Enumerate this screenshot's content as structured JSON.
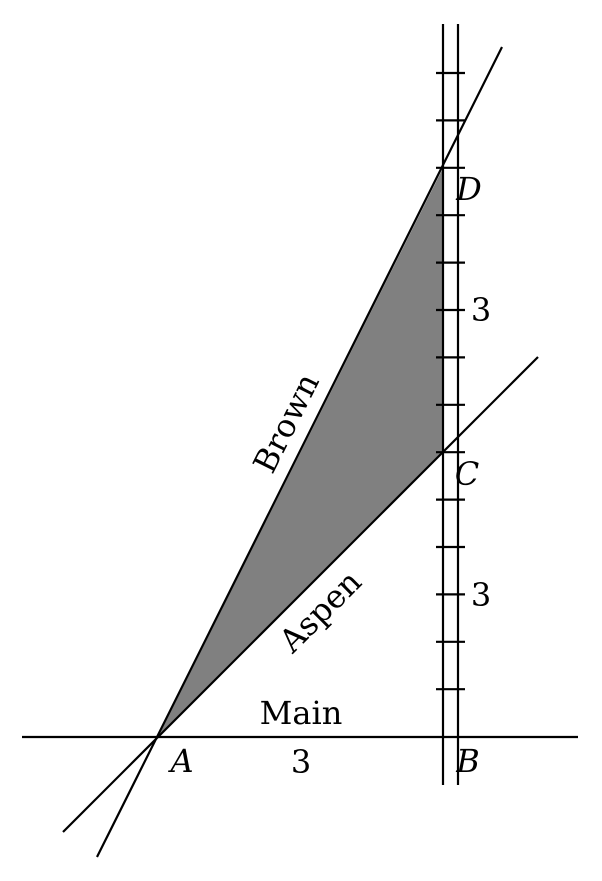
{
  "labels": {
    "point_a": "A",
    "point_b": "B",
    "point_c": "C",
    "point_d": "D",
    "road_main": "Main",
    "road_aspen": "Aspen",
    "road_brown": "Brown",
    "length_ab": "3",
    "length_bc": "3",
    "length_cd": "3"
  },
  "colors": {
    "shaded_region": "#808080",
    "lines": "#000000",
    "background": "#ffffff"
  }
}
